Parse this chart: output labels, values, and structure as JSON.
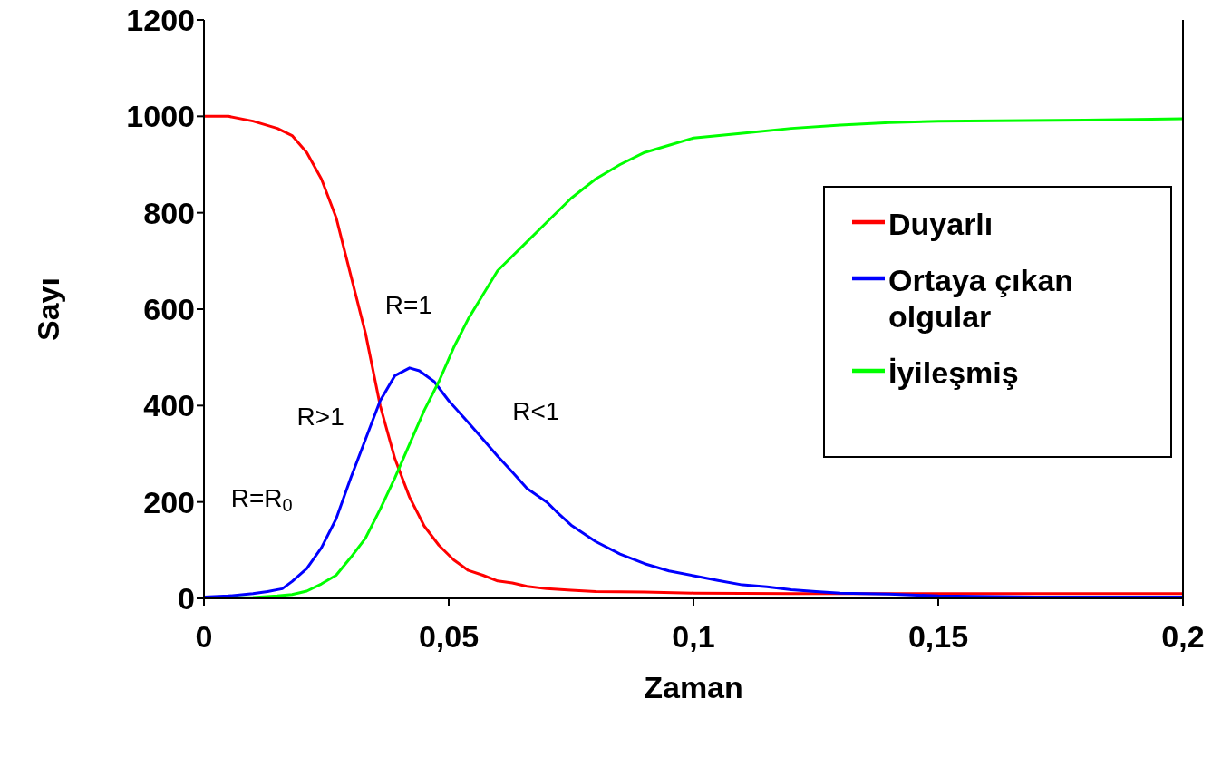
{
  "chart_data": {
    "type": "line",
    "xlabel": "Zaman",
    "ylabel": "Sayı",
    "xlim": [
      0,
      0.2
    ],
    "xticks": [
      0,
      {
        "value": 0.05,
        "label": "0,05"
      },
      {
        "value": 0.1,
        "label": "0,1"
      },
      {
        "value": 0.15,
        "label": "0,15"
      },
      {
        "value": 0.2,
        "label": "0,2"
      }
    ],
    "ylim": [
      0,
      1200
    ],
    "yticks": [
      0,
      200,
      400,
      600,
      800,
      1000,
      1200
    ],
    "grid": false,
    "legend": "right",
    "marker": "none",
    "line_style": "solid",
    "annotations": [
      "R=R$_{0}$",
      "R>1",
      "R=1",
      "R<1"
    ],
    "series": [
      {
        "name": "Duyarlı",
        "color": "#ff0000",
        "x": [
          0,
          0.005,
          0.01,
          0.015,
          0.018,
          0.021,
          0.024,
          0.027,
          0.03,
          0.033,
          0.036,
          0.039,
          0.042,
          0.045,
          0.048,
          0.051,
          0.054,
          0.057,
          0.06,
          0.063,
          0.066,
          0.07,
          0.075,
          0.08,
          0.09,
          0.1,
          0.12,
          0.2
        ],
        "values": [
          1000,
          1000,
          990,
          975,
          960,
          925,
          870,
          790,
          670,
          550,
          400,
          290,
          210,
          150,
          110,
          80,
          58,
          48,
          36,
          32,
          25,
          20,
          17,
          14,
          13,
          11,
          10,
          10
        ]
      },
      {
        "name": "Ortaya çıkan olgular",
        "color": "#0000ff",
        "x": [
          0,
          0.005,
          0.01,
          0.013,
          0.016,
          0.018,
          0.021,
          0.024,
          0.027,
          0.03,
          0.033,
          0.036,
          0.039,
          0.042,
          0.044,
          0.047,
          0.05,
          0.054,
          0.057,
          0.06,
          0.063,
          0.066,
          0.07,
          0.072,
          0.075,
          0.08,
          0.085,
          0.09,
          0.095,
          0.1,
          0.105,
          0.11,
          0.115,
          0.12,
          0.125,
          0.13,
          0.14,
          0.15,
          0.17,
          0.2
        ],
        "values": [
          3,
          5,
          10,
          14,
          20,
          35,
          62,
          105,
          165,
          250,
          330,
          410,
          462,
          478,
          472,
          450,
          410,
          365,
          330,
          295,
          262,
          228,
          200,
          180,
          152,
          118,
          92,
          72,
          57,
          47,
          37,
          28,
          24,
          18,
          14,
          11,
          9,
          5,
          3,
          3
        ]
      },
      {
        "name": "İyileşmiş",
        "color": "#00ff00",
        "x": [
          0,
          0.01,
          0.015,
          0.018,
          0.021,
          0.024,
          0.027,
          0.03,
          0.033,
          0.036,
          0.039,
          0.042,
          0.045,
          0.048,
          0.051,
          0.054,
          0.057,
          0.06,
          0.065,
          0.07,
          0.075,
          0.08,
          0.085,
          0.09,
          0.095,
          0.1,
          0.11,
          0.12,
          0.13,
          0.14,
          0.15,
          0.18,
          0.2
        ],
        "values": [
          0,
          2,
          5,
          8,
          15,
          30,
          48,
          85,
          125,
          185,
          250,
          320,
          390,
          450,
          520,
          580,
          630,
          680,
          730,
          780,
          830,
          870,
          900,
          925,
          940,
          955,
          965,
          975,
          982,
          987,
          990,
          992,
          995
        ]
      }
    ]
  }
}
